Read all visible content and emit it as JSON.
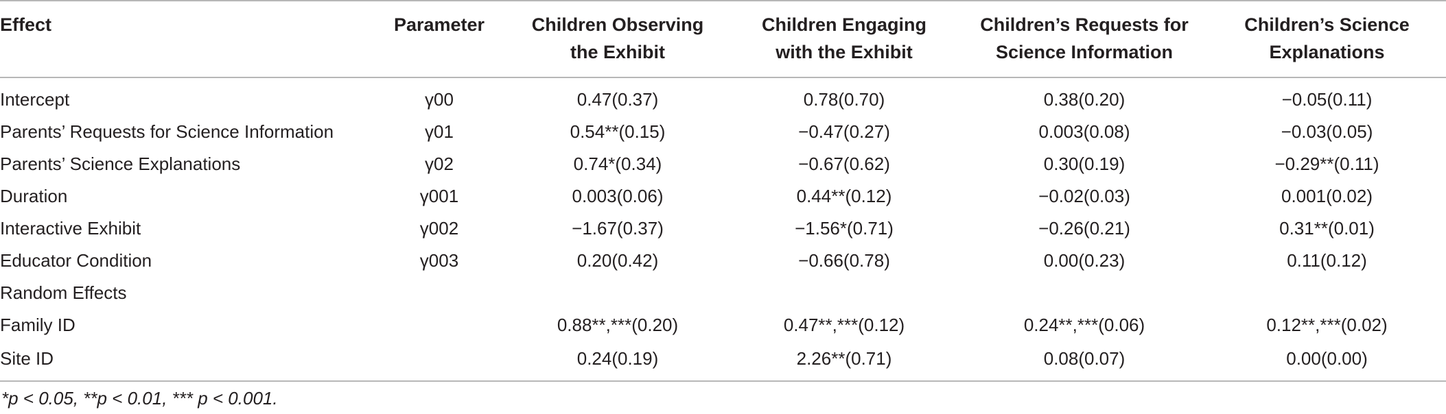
{
  "table": {
    "headers": [
      [
        "Effect"
      ],
      [
        "Parameter"
      ],
      [
        "Children Observing",
        "the Exhibit"
      ],
      [
        "Children Engaging",
        "with the Exhibit"
      ],
      [
        "Children’s Requests for",
        "Science Information"
      ],
      [
        "Children’s Science",
        "Explanations"
      ]
    ],
    "rows": [
      [
        "Intercept",
        "γ00",
        "0.47(0.37)",
        "0.78(0.70)",
        "0.38(0.20)",
        "−0.05(0.11)"
      ],
      [
        "Parents’ Requests for Science Information",
        "γ01",
        "0.54**(0.15)",
        "−0.47(0.27)",
        "0.003(0.08)",
        "−0.03(0.05)"
      ],
      [
        "Parents’ Science Explanations",
        "γ02",
        "0.74*(0.34)",
        "−0.67(0.62)",
        "0.30(0.19)",
        "−0.29**(0.11)"
      ],
      [
        "Duration",
        "γ001",
        "0.003(0.06)",
        "0.44**(0.12)",
        "−0.02(0.03)",
        "0.001(0.02)"
      ],
      [
        "Interactive Exhibit",
        "γ002",
        "−1.67(0.37)",
        "−1.56*(0.71)",
        "−0.26(0.21)",
        "0.31**(0.01)"
      ],
      [
        "Educator Condition",
        "γ003",
        "0.20(0.42)",
        "−0.66(0.78)",
        "0.00(0.23)",
        "0.11(0.12)"
      ],
      [
        "Random Effects",
        "",
        "",
        "",
        "",
        ""
      ],
      [
        "Family ID",
        "",
        "0.88**,***(0.20)",
        "0.47**,***(0.12)",
        "0.24**,***(0.06)",
        "0.12**,***(0.02)"
      ],
      [
        "Site ID",
        "",
        "0.24(0.19)",
        "2.26**(0.71)",
        "0.08(0.07)",
        "0.00(0.00)"
      ]
    ]
  },
  "footnote": "*p < 0.05, **p < 0.01, *** p < 0.001."
}
